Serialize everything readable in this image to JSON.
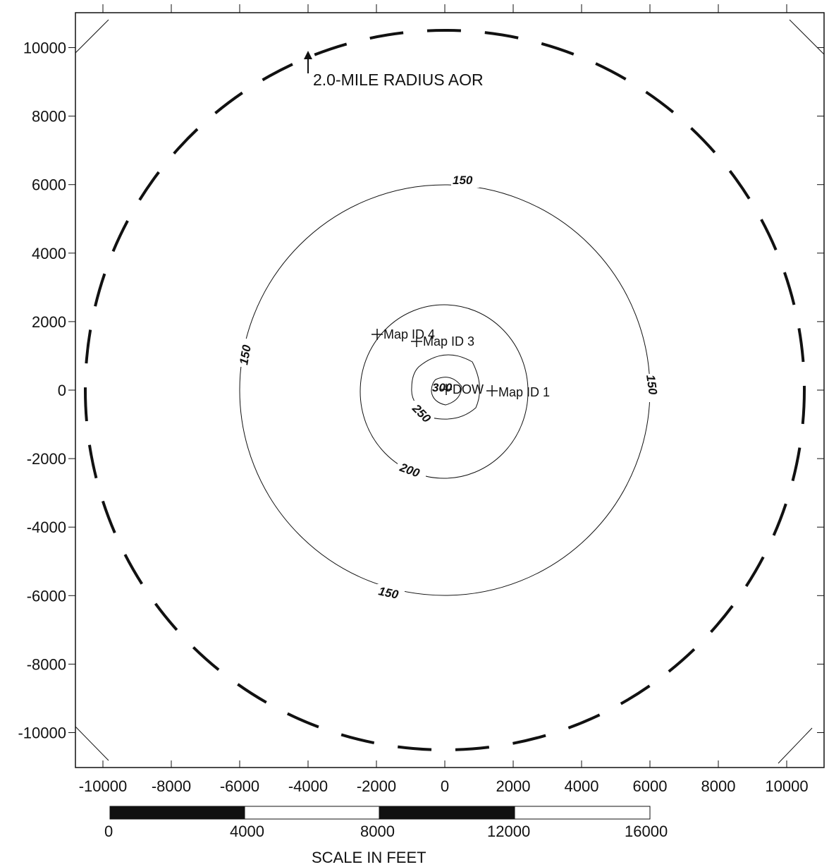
{
  "map": {
    "x_ticks": [
      "-10000",
      "-8000",
      "-6000",
      "-4000",
      "-2000",
      "0",
      "2000",
      "4000",
      "6000",
      "8000",
      "10000"
    ],
    "y_ticks": [
      "10000",
      "8000",
      "6000",
      "4000",
      "2000",
      "0",
      "-2000",
      "-4000",
      "-6000",
      "-8000",
      "-10000"
    ],
    "aor_label": "2.0-MILE RADIUS AOR",
    "contours": [
      {
        "value": 150,
        "label": "150"
      },
      {
        "value": 200,
        "label": "200"
      },
      {
        "value": 250,
        "label": "250"
      },
      {
        "value": 300,
        "label": "300"
      }
    ],
    "wells": [
      {
        "label": "Map ID 4"
      },
      {
        "label": "Map ID 3"
      },
      {
        "label": "DOW"
      },
      {
        "label": "Map ID 1"
      }
    ]
  },
  "scale_bar": {
    "labels": [
      "0",
      "4000",
      "8000",
      "12000",
      "16000"
    ],
    "title": "SCALE IN FEET"
  },
  "colors": {
    "line": "#111111",
    "background": "#ffffff"
  }
}
